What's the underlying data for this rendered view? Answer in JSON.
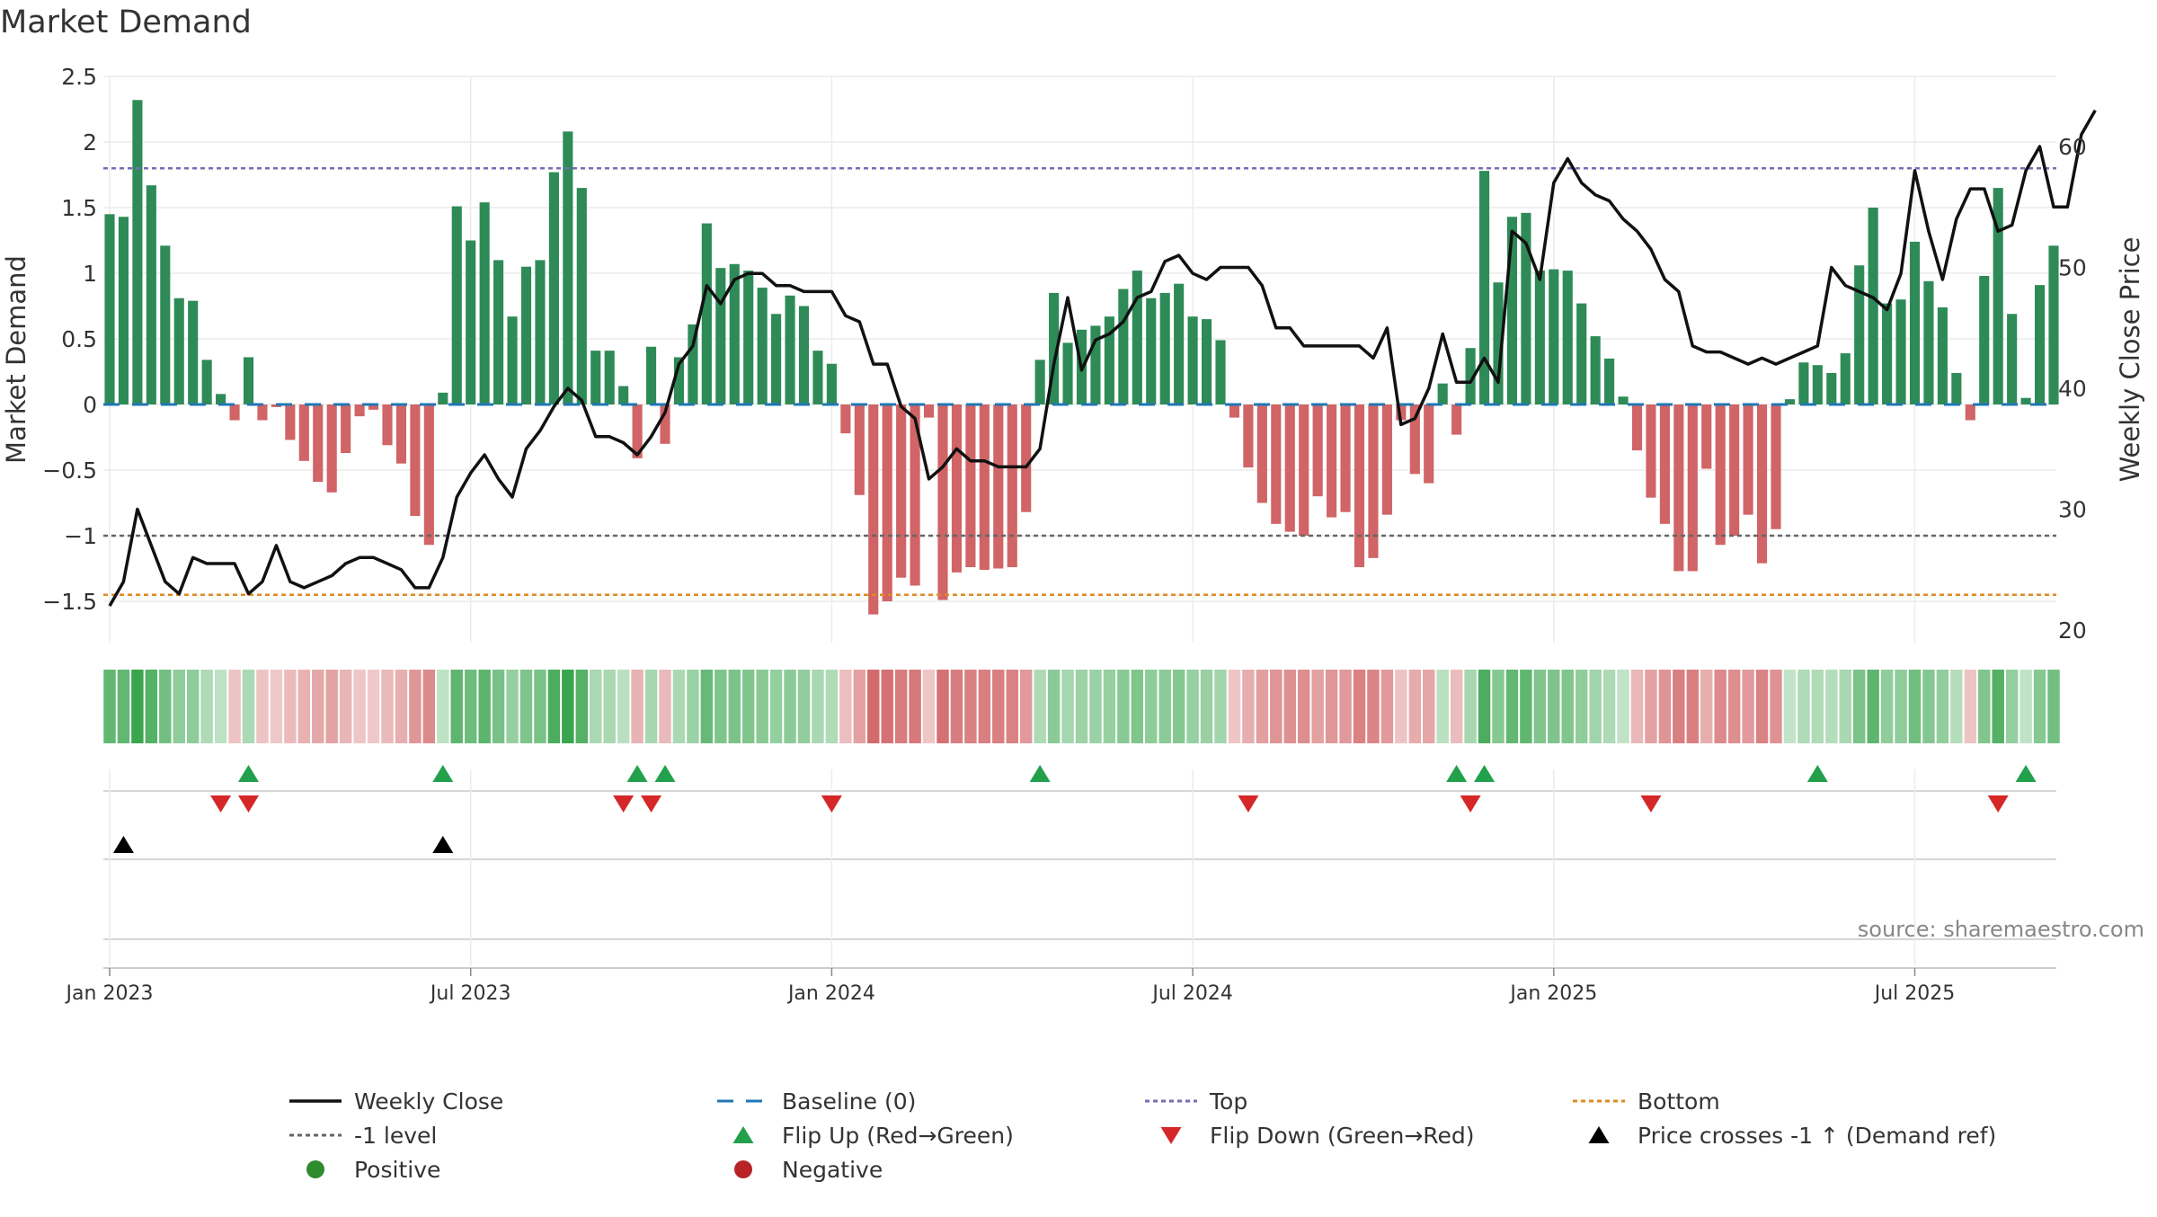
{
  "chart_data": {
    "type": "bar",
    "title": "Market Demand",
    "ylabel": "Market Demand",
    "y2label": "Weekly Close Price",
    "ylim": [
      -1.8,
      2.5
    ],
    "y2lim": [
      17,
      66
    ],
    "yticks": [
      {
        "v": 2.5,
        "label": "2.5"
      },
      {
        "v": 2,
        "label": "2"
      },
      {
        "v": 1.5,
        "label": "1.5"
      },
      {
        "v": 1,
        "label": "1"
      },
      {
        "v": 0.5,
        "label": "0.5"
      },
      {
        "v": 0,
        "label": "0"
      },
      {
        "v": -0.5,
        "label": "−0.5"
      },
      {
        "v": -1,
        "label": "−1"
      },
      {
        "v": -1.5,
        "label": "−1.5"
      }
    ],
    "y2ticks": [
      {
        "v": 60,
        "label": "60"
      },
      {
        "v": 50,
        "label": "50"
      },
      {
        "v": 40,
        "label": "40"
      },
      {
        "v": 30,
        "label": "30"
      },
      {
        "v": 20,
        "label": "20"
      }
    ],
    "xticks": [
      {
        "w": 1,
        "label": "Jan 2023"
      },
      {
        "w": 27,
        "label": "Jul 2023"
      },
      {
        "w": 53,
        "label": "Jan 2024"
      },
      {
        "w": 79,
        "label": "Jul 2024"
      },
      {
        "w": 105,
        "label": "Jan 2025"
      },
      {
        "w": 131,
        "label": "Jul 2025"
      }
    ],
    "top_level": 1.8,
    "bottom_level": -1.45,
    "neg_one_level": -1,
    "demand": [
      1.45,
      1.43,
      2.32,
      1.67,
      1.21,
      0.81,
      0.79,
      0.34,
      0.08,
      -0.12,
      0.36,
      -0.12,
      -0.02,
      -0.27,
      -0.43,
      -0.59,
      -0.67,
      -0.37,
      -0.09,
      -0.04,
      -0.31,
      -0.45,
      -0.85,
      -1.07,
      0.09,
      1.51,
      1.25,
      1.54,
      1.1,
      0.67,
      1.05,
      1.1,
      1.77,
      2.08,
      1.65,
      0.41,
      0.41,
      0.14,
      -0.41,
      0.44,
      -0.3,
      0.36,
      0.61,
      1.38,
      1.04,
      1.07,
      1.02,
      0.89,
      0.69,
      0.83,
      0.75,
      0.41,
      0.31,
      -0.22,
      -0.69,
      -1.6,
      -1.5,
      -1.32,
      -1.38,
      -0.1,
      -1.49,
      -1.28,
      -1.24,
      -1.26,
      -1.25,
      -1.24,
      -0.82,
      0.34,
      0.85,
      0.47,
      0.57,
      0.6,
      0.67,
      0.88,
      1.02,
      0.81,
      0.85,
      0.92,
      0.67,
      0.65,
      0.49,
      -0.1,
      -0.48,
      -0.75,
      -0.91,
      -0.97,
      -1.0,
      -0.7,
      -0.86,
      -0.82,
      -1.24,
      -1.17,
      -0.84,
      -0.12,
      -0.53,
      -0.6,
      0.16,
      -0.23,
      0.43,
      1.78,
      0.93,
      1.43,
      1.46,
      1.02,
      1.03,
      1.02,
      0.77,
      0.52,
      0.35,
      0.06,
      -0.35,
      -0.71,
      -0.91,
      -1.27,
      -1.27,
      -0.49,
      -1.07,
      -1.0,
      -0.84,
      -1.21,
      -0.95,
      0.04,
      0.32,
      0.3,
      0.24,
      0.39,
      1.06,
      1.5,
      0.77,
      0.8,
      1.24,
      0.94,
      0.74,
      0.24,
      -0.12,
      0.98,
      1.65,
      0.69,
      0.05,
      0.91,
      1.21
    ],
    "price_series": {
      "name": "Weekly Close",
      "values": [
        22,
        24,
        30,
        27,
        24,
        23,
        26,
        25.5,
        25.5,
        25.5,
        23,
        24,
        27,
        24,
        23.5,
        24,
        24.5,
        25.5,
        26,
        26,
        25.5,
        25,
        23.5,
        23.5,
        26,
        31,
        33,
        34.5,
        32.5,
        31,
        35,
        36.5,
        38.5,
        40,
        39,
        36,
        36,
        35.5,
        34.5,
        36,
        38,
        42,
        43.5,
        48.5,
        47,
        49,
        49.5,
        49.5,
        48.5,
        48.5,
        48,
        48,
        48,
        46,
        45.5,
        42,
        42,
        38.5,
        37.5,
        32.5,
        33.5,
        35,
        34,
        34,
        33.5,
        33.5,
        33.5,
        35,
        42,
        47.5,
        41.5,
        44,
        44.5,
        45.5,
        47.5,
        48,
        50.5,
        51,
        49.5,
        49,
        50,
        50,
        50,
        48.5,
        45,
        45,
        43.5,
        43.5,
        43.5,
        43.5,
        43.5,
        42.5,
        45,
        37,
        37.5,
        40,
        44.5,
        40.5,
        40.5,
        42.5,
        40.5,
        53,
        52,
        49,
        57,
        59,
        57,
        56,
        55.5,
        54,
        53,
        51.5,
        49,
        48,
        43.5,
        43,
        43,
        42.5,
        42,
        42.5,
        42,
        42.5,
        43,
        43.5,
        50,
        48.5,
        48,
        47.5,
        46.5,
        49.5,
        58,
        53,
        49,
        54,
        56.5,
        56.5,
        53,
        53.5,
        58,
        60,
        55,
        55,
        61,
        63
      ]
    },
    "flip_up_weeks": [
      11,
      25,
      39,
      41,
      68,
      98,
      100,
      124,
      139
    ],
    "flip_down_weeks": [
      9,
      11,
      38,
      40,
      53,
      83,
      99,
      112,
      137
    ],
    "price_cross_weeks": [
      2,
      25
    ],
    "legend": [
      {
        "key": "weekly_close",
        "label": "Weekly Close",
        "color": "#111111"
      },
      {
        "key": "baseline",
        "label": "Baseline (0)",
        "color": "#1f77b4"
      },
      {
        "key": "top",
        "label": "Top",
        "color": "#7b6bb5"
      },
      {
        "key": "bottom",
        "label": "Bottom",
        "color": "#e08a1e"
      },
      {
        "key": "neg_one",
        "label": "-1 level",
        "color": "#666666"
      },
      {
        "key": "flip_up",
        "label": "Flip Up (Red→Green)",
        "color": "#22a04b"
      },
      {
        "key": "flip_down",
        "label": "Flip Down (Green→Red)",
        "color": "#d62728"
      },
      {
        "key": "price_cross",
        "label": "Price crosses -1 ↑ (Demand ref)",
        "color": "#000000"
      },
      {
        "key": "positive",
        "label": "Positive",
        "color": "#2e8b2e"
      },
      {
        "key": "negative",
        "label": "Negative",
        "color": "#b82328"
      }
    ],
    "legend_placement": "bottom"
  },
  "source_text": "source: sharemaestro.com",
  "colors": {
    "pos_bar": "#2e8b57",
    "neg_bar": "#d06466",
    "price_line": "#111111",
    "baseline": "#1f77b4",
    "top": "#7b6bb5",
    "bottom": "#e08a1e",
    "neg_one": "#666666",
    "flip_up": "#22a04b",
    "flip_down": "#d62728",
    "price_cross": "#000000",
    "grid": "#ececec"
  }
}
